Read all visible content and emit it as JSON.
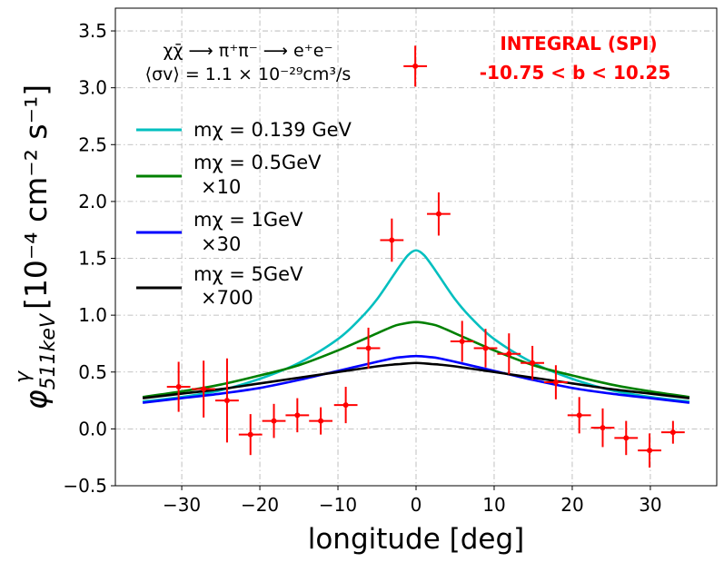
{
  "chart_data": {
    "type": "line",
    "title": "",
    "xlabel": "longitude [deg]",
    "ylabel_unit": "[10⁻⁴ cm⁻² s⁻¹]",
    "ylabel_symbol": "φ",
    "ylabel_sup": "γ",
    "ylabel_sub": "511keV",
    "xlim": [
      -38.5,
      38.5
    ],
    "ylim": [
      -0.5,
      3.7
    ],
    "grid": true,
    "x_ticks": [
      -30,
      -20,
      -10,
      0,
      10,
      20,
      30
    ],
    "x_tick_labels": [
      "−30",
      "−20",
      "−10",
      "0",
      "10",
      "20",
      "30"
    ],
    "y_ticks": [
      -0.5,
      0.0,
      0.5,
      1.0,
      1.5,
      2.0,
      2.5,
      3.0,
      3.5
    ],
    "y_tick_labels": [
      "−0.5",
      "0.0",
      "0.5",
      "1.0",
      "1.5",
      "2.0",
      "2.5",
      "3.0",
      "3.5"
    ],
    "annotation": {
      "process": "χχ̄ ⟶ π⁺π⁻ ⟶ e⁺e⁻",
      "cross_section": "⟨σv⟩ = 1.1 × 10⁻²⁹cm³/s"
    },
    "data_label": {
      "line1": "INTEGRAL (SPI)",
      "line2": "-10.75 < b < 10.25",
      "color": "#ff0000",
      "legend_point": {
        "x": -0.1,
        "y": 3.19,
        "yerr": 0.18
      }
    },
    "series": [
      {
        "name": "m_χ = 0.139 GeV",
        "legend_label": "mχ = 0.139 GeV",
        "legend_label_2": "",
        "color": "#00bfbf",
        "x": [
          -35,
          -30,
          -25,
          -20,
          -15,
          -10,
          -7,
          -5,
          -3,
          -2,
          -1,
          0,
          1,
          2,
          3,
          5,
          7,
          10,
          15,
          20,
          25,
          30,
          35
        ],
        "y": [
          0.24,
          0.28,
          0.34,
          0.44,
          0.58,
          0.79,
          0.98,
          1.14,
          1.34,
          1.44,
          1.53,
          1.57,
          1.53,
          1.44,
          1.34,
          1.14,
          0.98,
          0.79,
          0.58,
          0.44,
          0.34,
          0.28,
          0.24
        ]
      },
      {
        "name": "m_χ = 0.5GeV ×10",
        "legend_label": "mχ = 0.5GeV",
        "legend_label_2": "×10",
        "color": "#008000",
        "x": [
          -35,
          -30,
          -25,
          -20,
          -15,
          -10,
          -5,
          -3,
          -2,
          0,
          2,
          3,
          5,
          10,
          15,
          20,
          25,
          30,
          35
        ],
        "y": [
          0.28,
          0.33,
          0.39,
          0.47,
          0.56,
          0.69,
          0.84,
          0.9,
          0.92,
          0.94,
          0.92,
          0.9,
          0.84,
          0.69,
          0.56,
          0.47,
          0.39,
          0.33,
          0.28
        ]
      },
      {
        "name": "m_χ = 1GeV ×30",
        "legend_label": "mχ = 1GeV",
        "legend_label_2": "×30",
        "color": "#0000ff",
        "x": [
          -35,
          -30,
          -25,
          -20,
          -15,
          -10,
          -5,
          -3,
          -2,
          0,
          2,
          3,
          5,
          10,
          15,
          20,
          25,
          30,
          35
        ],
        "y": [
          0.23,
          0.27,
          0.31,
          0.36,
          0.43,
          0.51,
          0.59,
          0.62,
          0.63,
          0.64,
          0.63,
          0.62,
          0.59,
          0.51,
          0.43,
          0.36,
          0.31,
          0.27,
          0.23
        ]
      },
      {
        "name": "m_χ = 5GeV ×700",
        "legend_label": "mχ = 5GeV",
        "legend_label_2": "×700",
        "color": "#000000",
        "x": [
          -35,
          -30,
          -25,
          -20,
          -15,
          -10,
          -5,
          -3,
          -2,
          0,
          2,
          3,
          5,
          10,
          15,
          20,
          25,
          30,
          35
        ],
        "y": [
          0.27,
          0.31,
          0.35,
          0.4,
          0.45,
          0.5,
          0.55,
          0.565,
          0.57,
          0.58,
          0.57,
          0.565,
          0.55,
          0.5,
          0.45,
          0.4,
          0.35,
          0.31,
          0.27
        ]
      }
    ],
    "points": {
      "name": "INTEGRAL (SPI)",
      "color": "#ff0000",
      "xerr": 1.5,
      "x": [
        -30.4,
        -27.2,
        -24.2,
        -21.2,
        -18.2,
        -15.2,
        -12.2,
        -9.0,
        -6.1,
        -3.1,
        2.9,
        5.9,
        8.9,
        11.9,
        14.9,
        17.9,
        20.9,
        23.9,
        26.9,
        29.9,
        32.9
      ],
      "y": [
        0.37,
        0.35,
        0.25,
        -0.05,
        0.07,
        0.12,
        0.07,
        0.21,
        0.71,
        1.66,
        1.89,
        0.77,
        0.71,
        0.66,
        0.58,
        0.41,
        0.12,
        0.01,
        -0.08,
        -0.19,
        -0.03
      ],
      "yerr": [
        0.22,
        0.25,
        0.37,
        0.18,
        0.15,
        0.15,
        0.12,
        0.16,
        0.18,
        0.19,
        0.19,
        0.18,
        0.17,
        0.18,
        0.15,
        0.15,
        0.16,
        0.17,
        0.15,
        0.15,
        0.1
      ]
    }
  }
}
